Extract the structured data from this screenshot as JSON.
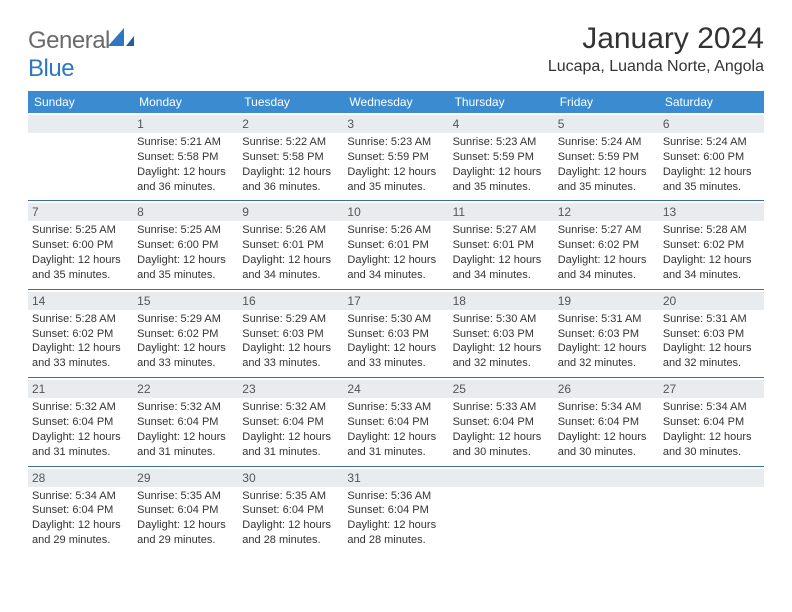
{
  "brand": {
    "general": "General",
    "blue": "Blue"
  },
  "title": "January 2024",
  "location": "Lucapa, Luanda Norte, Angola",
  "colors": {
    "header_bg": "#3b8bd0",
    "daybar_bg": "#e9ecef",
    "rule": "#3b6fa3"
  },
  "weekdays": [
    "Sunday",
    "Monday",
    "Tuesday",
    "Wednesday",
    "Thursday",
    "Friday",
    "Saturday"
  ],
  "weeks": [
    [
      null,
      {
        "n": "1",
        "sr": "Sunrise: 5:21 AM",
        "ss": "Sunset: 5:58 PM",
        "d1": "Daylight: 12 hours",
        "d2": "and 36 minutes."
      },
      {
        "n": "2",
        "sr": "Sunrise: 5:22 AM",
        "ss": "Sunset: 5:58 PM",
        "d1": "Daylight: 12 hours",
        "d2": "and 36 minutes."
      },
      {
        "n": "3",
        "sr": "Sunrise: 5:23 AM",
        "ss": "Sunset: 5:59 PM",
        "d1": "Daylight: 12 hours",
        "d2": "and 35 minutes."
      },
      {
        "n": "4",
        "sr": "Sunrise: 5:23 AM",
        "ss": "Sunset: 5:59 PM",
        "d1": "Daylight: 12 hours",
        "d2": "and 35 minutes."
      },
      {
        "n": "5",
        "sr": "Sunrise: 5:24 AM",
        "ss": "Sunset: 5:59 PM",
        "d1": "Daylight: 12 hours",
        "d2": "and 35 minutes."
      },
      {
        "n": "6",
        "sr": "Sunrise: 5:24 AM",
        "ss": "Sunset: 6:00 PM",
        "d1": "Daylight: 12 hours",
        "d2": "and 35 minutes."
      }
    ],
    [
      {
        "n": "7",
        "sr": "Sunrise: 5:25 AM",
        "ss": "Sunset: 6:00 PM",
        "d1": "Daylight: 12 hours",
        "d2": "and 35 minutes."
      },
      {
        "n": "8",
        "sr": "Sunrise: 5:25 AM",
        "ss": "Sunset: 6:00 PM",
        "d1": "Daylight: 12 hours",
        "d2": "and 35 minutes."
      },
      {
        "n": "9",
        "sr": "Sunrise: 5:26 AM",
        "ss": "Sunset: 6:01 PM",
        "d1": "Daylight: 12 hours",
        "d2": "and 34 minutes."
      },
      {
        "n": "10",
        "sr": "Sunrise: 5:26 AM",
        "ss": "Sunset: 6:01 PM",
        "d1": "Daylight: 12 hours",
        "d2": "and 34 minutes."
      },
      {
        "n": "11",
        "sr": "Sunrise: 5:27 AM",
        "ss": "Sunset: 6:01 PM",
        "d1": "Daylight: 12 hours",
        "d2": "and 34 minutes."
      },
      {
        "n": "12",
        "sr": "Sunrise: 5:27 AM",
        "ss": "Sunset: 6:02 PM",
        "d1": "Daylight: 12 hours",
        "d2": "and 34 minutes."
      },
      {
        "n": "13",
        "sr": "Sunrise: 5:28 AM",
        "ss": "Sunset: 6:02 PM",
        "d1": "Daylight: 12 hours",
        "d2": "and 34 minutes."
      }
    ],
    [
      {
        "n": "14",
        "sr": "Sunrise: 5:28 AM",
        "ss": "Sunset: 6:02 PM",
        "d1": "Daylight: 12 hours",
        "d2": "and 33 minutes."
      },
      {
        "n": "15",
        "sr": "Sunrise: 5:29 AM",
        "ss": "Sunset: 6:02 PM",
        "d1": "Daylight: 12 hours",
        "d2": "and 33 minutes."
      },
      {
        "n": "16",
        "sr": "Sunrise: 5:29 AM",
        "ss": "Sunset: 6:03 PM",
        "d1": "Daylight: 12 hours",
        "d2": "and 33 minutes."
      },
      {
        "n": "17",
        "sr": "Sunrise: 5:30 AM",
        "ss": "Sunset: 6:03 PM",
        "d1": "Daylight: 12 hours",
        "d2": "and 33 minutes."
      },
      {
        "n": "18",
        "sr": "Sunrise: 5:30 AM",
        "ss": "Sunset: 6:03 PM",
        "d1": "Daylight: 12 hours",
        "d2": "and 32 minutes."
      },
      {
        "n": "19",
        "sr": "Sunrise: 5:31 AM",
        "ss": "Sunset: 6:03 PM",
        "d1": "Daylight: 12 hours",
        "d2": "and 32 minutes."
      },
      {
        "n": "20",
        "sr": "Sunrise: 5:31 AM",
        "ss": "Sunset: 6:03 PM",
        "d1": "Daylight: 12 hours",
        "d2": "and 32 minutes."
      }
    ],
    [
      {
        "n": "21",
        "sr": "Sunrise: 5:32 AM",
        "ss": "Sunset: 6:04 PM",
        "d1": "Daylight: 12 hours",
        "d2": "and 31 minutes."
      },
      {
        "n": "22",
        "sr": "Sunrise: 5:32 AM",
        "ss": "Sunset: 6:04 PM",
        "d1": "Daylight: 12 hours",
        "d2": "and 31 minutes."
      },
      {
        "n": "23",
        "sr": "Sunrise: 5:32 AM",
        "ss": "Sunset: 6:04 PM",
        "d1": "Daylight: 12 hours",
        "d2": "and 31 minutes."
      },
      {
        "n": "24",
        "sr": "Sunrise: 5:33 AM",
        "ss": "Sunset: 6:04 PM",
        "d1": "Daylight: 12 hours",
        "d2": "and 31 minutes."
      },
      {
        "n": "25",
        "sr": "Sunrise: 5:33 AM",
        "ss": "Sunset: 6:04 PM",
        "d1": "Daylight: 12 hours",
        "d2": "and 30 minutes."
      },
      {
        "n": "26",
        "sr": "Sunrise: 5:34 AM",
        "ss": "Sunset: 6:04 PM",
        "d1": "Daylight: 12 hours",
        "d2": "and 30 minutes."
      },
      {
        "n": "27",
        "sr": "Sunrise: 5:34 AM",
        "ss": "Sunset: 6:04 PM",
        "d1": "Daylight: 12 hours",
        "d2": "and 30 minutes."
      }
    ],
    [
      {
        "n": "28",
        "sr": "Sunrise: 5:34 AM",
        "ss": "Sunset: 6:04 PM",
        "d1": "Daylight: 12 hours",
        "d2": "and 29 minutes."
      },
      {
        "n": "29",
        "sr": "Sunrise: 5:35 AM",
        "ss": "Sunset: 6:04 PM",
        "d1": "Daylight: 12 hours",
        "d2": "and 29 minutes."
      },
      {
        "n": "30",
        "sr": "Sunrise: 5:35 AM",
        "ss": "Sunset: 6:04 PM",
        "d1": "Daylight: 12 hours",
        "d2": "and 28 minutes."
      },
      {
        "n": "31",
        "sr": "Sunrise: 5:36 AM",
        "ss": "Sunset: 6:04 PM",
        "d1": "Daylight: 12 hours",
        "d2": "and 28 minutes."
      },
      null,
      null,
      null
    ]
  ]
}
